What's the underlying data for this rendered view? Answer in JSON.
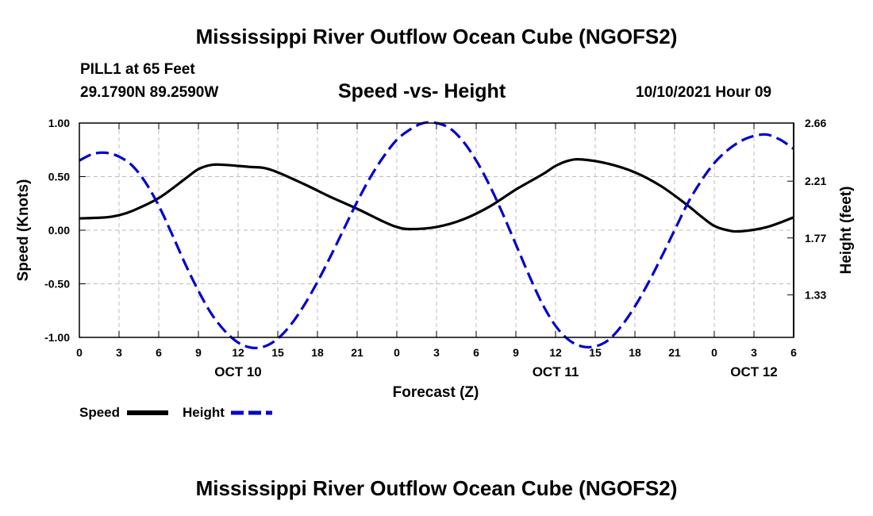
{
  "header": {
    "title_top": "Mississippi River Outflow Ocean Cube (NGOFS2)",
    "title_bottom": "Mississippi River Outflow Ocean Cube (NGOFS2)",
    "station": "PILL1 at 65 Feet",
    "coords": "29.1790N  89.2590W",
    "chart_subtitle": "Speed -vs- Height",
    "datetime": "10/10/2021 Hour 09"
  },
  "legend": {
    "speed_label": "Speed",
    "height_label": "Height"
  },
  "colors": {
    "speed": "#000000",
    "height": "#0000cc",
    "grid": "#bbbbbb"
  },
  "chart_data": {
    "type": "line",
    "title": "Speed -vs- Height",
    "xlabel": "Forecast (Z)",
    "ylabel": "Speed (Knots)",
    "y2label": "Height (feet)",
    "x_ticks": [
      "0",
      "3",
      "6",
      "9",
      "12",
      "15",
      "18",
      "21",
      "0",
      "3",
      "6",
      "9",
      "12",
      "15",
      "18",
      "21",
      "0",
      "3",
      "6"
    ],
    "date_labels": [
      {
        "text": "OCT 10",
        "hour": 12
      },
      {
        "text": "OCT 11",
        "hour": 36
      },
      {
        "text": "OCT 12",
        "hour": 51
      }
    ],
    "xlim": [
      0,
      54
    ],
    "ylim": [
      -1.0,
      1.0
    ],
    "y_ticks": [
      "1.00",
      "0.50",
      "0.00",
      "-0.50",
      "-1.00"
    ],
    "y2lim": [
      1.0,
      2.66
    ],
    "y2_ticks": [
      "2.66",
      "2.21",
      "1.77",
      "1.33"
    ],
    "grid": true,
    "series": [
      {
        "name": "Speed",
        "axis": "left",
        "style": "solid",
        "x": [
          0,
          2,
          3,
          4,
          6,
          8,
          9,
          10,
          11,
          12,
          13,
          14,
          15,
          17,
          19,
          21,
          23,
          24,
          25,
          27,
          29,
          31,
          33,
          35,
          36,
          37,
          38,
          40,
          42,
          44,
          46,
          47,
          48,
          49,
          50,
          52,
          54
        ],
        "y": [
          0.11,
          0.12,
          0.14,
          0.18,
          0.3,
          0.48,
          0.57,
          0.61,
          0.61,
          0.6,
          0.59,
          0.58,
          0.54,
          0.43,
          0.31,
          0.2,
          0.08,
          0.03,
          0.01,
          0.03,
          0.1,
          0.22,
          0.38,
          0.52,
          0.6,
          0.65,
          0.66,
          0.62,
          0.54,
          0.41,
          0.23,
          0.13,
          0.04,
          0.0,
          -0.01,
          0.03,
          0.12
        ]
      },
      {
        "name": "Height",
        "axis": "right",
        "style": "dashed",
        "x": [
          0,
          1,
          2,
          3,
          4,
          5,
          6,
          7,
          8,
          9,
          10,
          11,
          12,
          13,
          14,
          15,
          16,
          17,
          18,
          19,
          20,
          21,
          22,
          23,
          24,
          25,
          26,
          27,
          28,
          29,
          30,
          31,
          32,
          33,
          34,
          35,
          36,
          37,
          38,
          39,
          40,
          41,
          42,
          43,
          44,
          45,
          46,
          47,
          48,
          49,
          50,
          51,
          52,
          53,
          54
        ],
        "y": [
          2.37,
          2.42,
          2.43,
          2.4,
          2.33,
          2.2,
          2.02,
          1.8,
          1.57,
          1.36,
          1.18,
          1.05,
          0.96,
          0.92,
          0.93,
          0.99,
          1.1,
          1.25,
          1.43,
          1.63,
          1.84,
          2.05,
          2.24,
          2.4,
          2.53,
          2.61,
          2.66,
          2.66,
          2.62,
          2.52,
          2.37,
          2.18,
          1.96,
          1.72,
          1.48,
          1.26,
          1.09,
          0.98,
          0.93,
          0.93,
          0.98,
          1.09,
          1.24,
          1.42,
          1.62,
          1.83,
          2.04,
          2.21,
          2.35,
          2.45,
          2.52,
          2.56,
          2.57,
          2.53,
          2.46
        ]
      }
    ]
  }
}
